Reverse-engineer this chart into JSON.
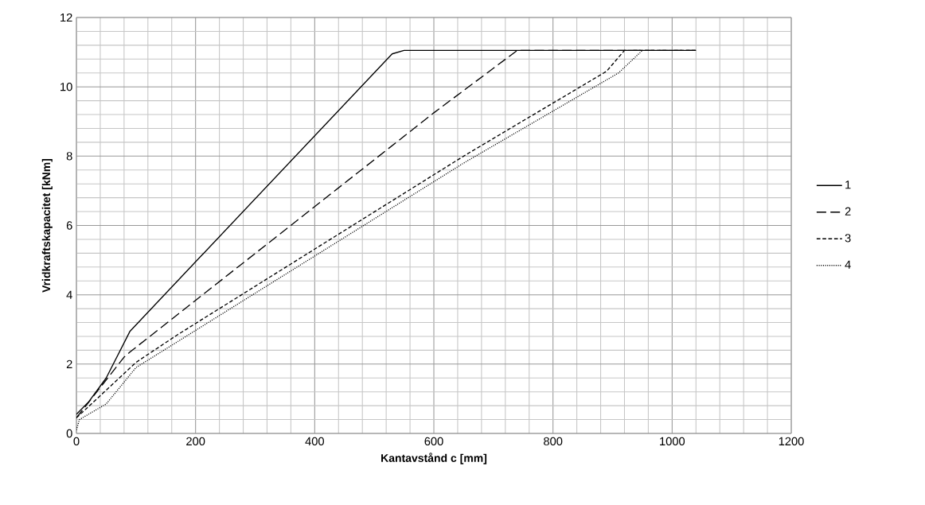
{
  "chart_data": {
    "type": "line",
    "xlabel": "Kantavstånd c [mm]",
    "ylabel": "Vridkraftskapacitet [kNm]",
    "xlim": [
      0,
      1200
    ],
    "ylim": [
      0,
      12
    ],
    "xticks": [
      0,
      200,
      400,
      600,
      800,
      1000,
      1200
    ],
    "yticks": [
      0,
      2,
      4,
      6,
      8,
      10,
      12
    ],
    "grid": true,
    "legend": "right",
    "marker": "none",
    "series": [
      {
        "name": "1",
        "color": "#000000",
        "line_style": "solid",
        "x": [
          0,
          20,
          50,
          90,
          530,
          550,
          1040
        ],
        "values": [
          0.55,
          0.9,
          1.6,
          2.95,
          10.95,
          11.05,
          11.05
        ]
      },
      {
        "name": "2",
        "color": "#000000",
        "line_style": "longdash",
        "x": [
          0,
          80,
          90,
          600,
          740,
          1040
        ],
        "values": [
          0.45,
          2.2,
          2.35,
          9.25,
          11.05,
          11.05
        ]
      },
      {
        "name": "3",
        "color": "#000000",
        "line_style": "dashed",
        "x": [
          0,
          100,
          170,
          650,
          890,
          920,
          1040
        ],
        "values": [
          0.45,
          2.05,
          2.85,
          8.0,
          10.45,
          11.05,
          11.05
        ]
      },
      {
        "name": "4",
        "color": "#000000",
        "line_style": "dotted",
        "x": [
          0,
          5,
          50,
          100,
          170,
          650,
          910,
          950
        ],
        "values": [
          0.1,
          0.4,
          0.85,
          1.9,
          2.65,
          7.8,
          10.4,
          11.05
        ]
      }
    ]
  }
}
